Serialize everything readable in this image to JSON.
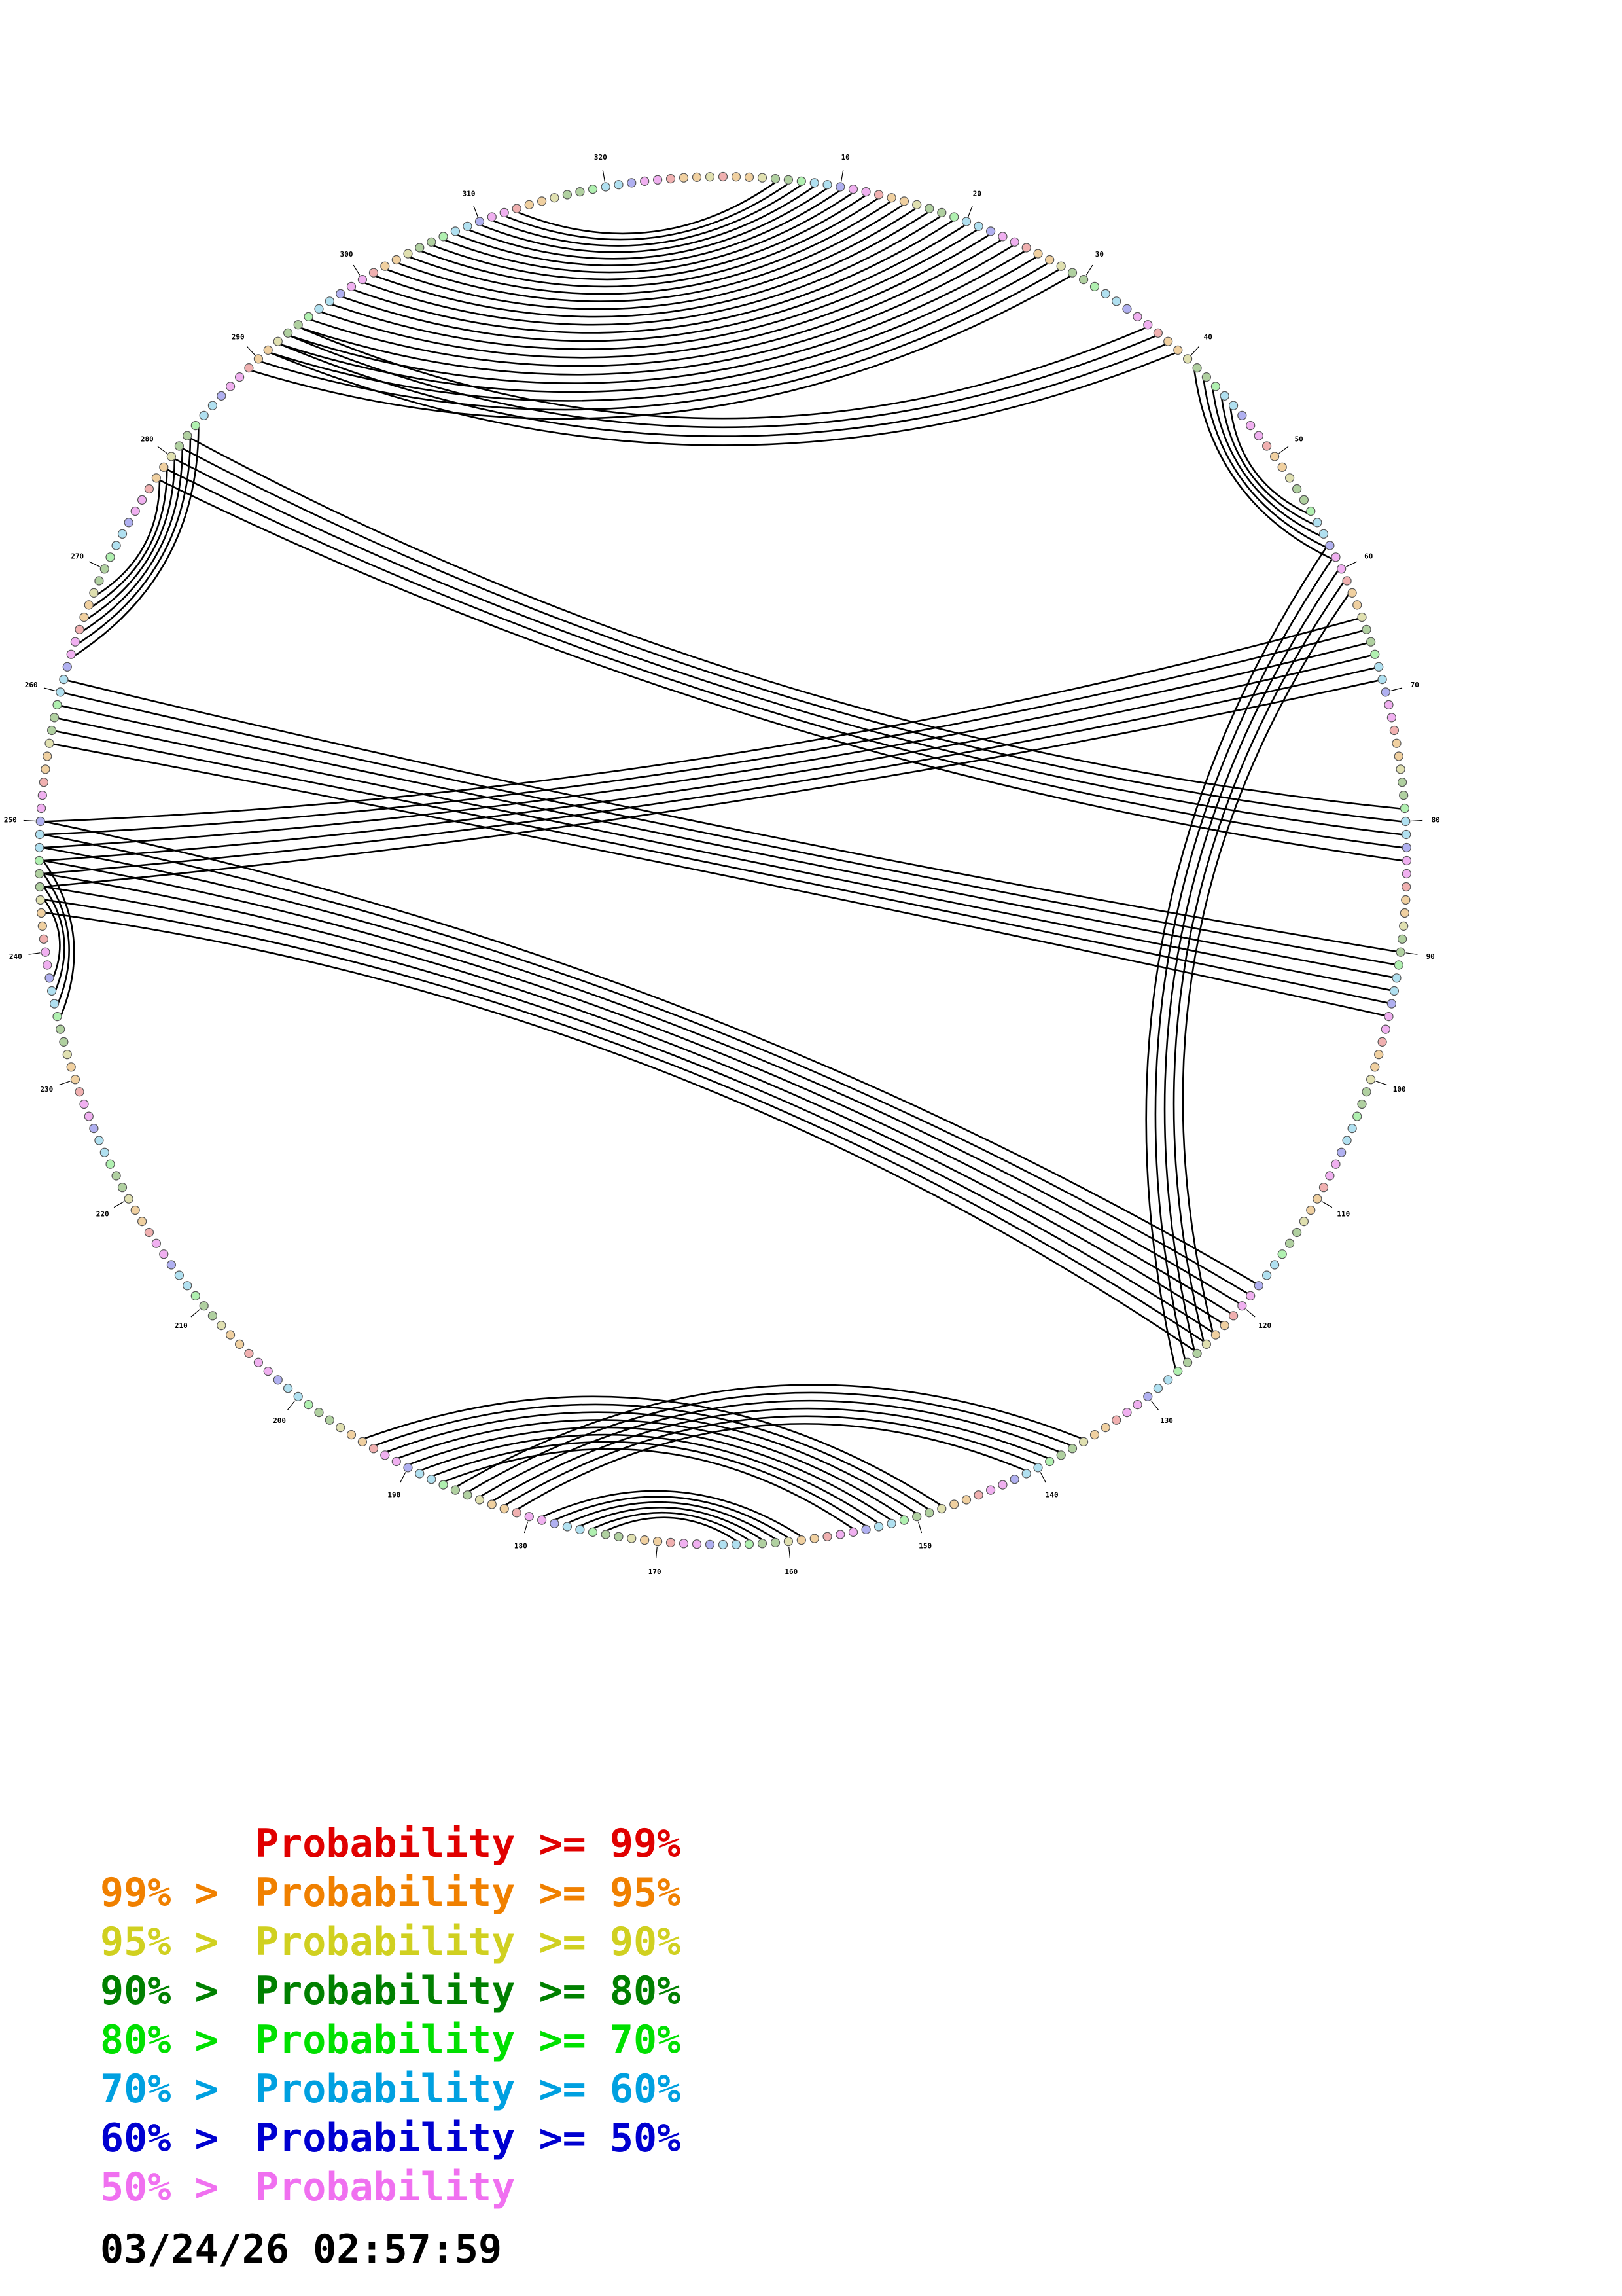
{
  "diagram": {
    "total_bases": 328,
    "tick_labels": [
      "10",
      "20",
      "30",
      "40",
      "50",
      "60",
      "70",
      "80",
      "90",
      "100",
      "110",
      "120",
      "130",
      "140",
      "150",
      "160",
      "170",
      "180",
      "190",
      "200",
      "210",
      "220",
      "230",
      "240",
      "250",
      "260",
      "270",
      "280",
      "290",
      "300",
      "310",
      "320"
    ],
    "pair_ranges": [
      {
        "i_start": 5,
        "j_start": 313,
        "count": 8
      },
      {
        "i_start": 13,
        "j_start": 305,
        "count": 17
      },
      {
        "i_start": 36,
        "j_start": 294,
        "count": 4
      },
      {
        "i_start": 41,
        "j_start": 59,
        "count": 5
      },
      {
        "i_start": 58,
        "j_start": 127,
        "count": 5
      },
      {
        "i_start": 64,
        "j_start": 250,
        "count": 6
      },
      {
        "i_start": 79,
        "j_start": 282,
        "count": 5
      },
      {
        "i_start": 90,
        "j_start": 261,
        "count": 6
      },
      {
        "i_start": 118,
        "j_start": 250,
        "count": 8
      },
      {
        "i_start": 136,
        "j_start": 186,
        "count": 6
      },
      {
        "i_start": 148,
        "j_start": 194,
        "count": 8
      },
      {
        "i_start": 159,
        "j_start": 179,
        "count": 6
      },
      {
        "i_start": 235,
        "j_start": 247,
        "count": 4
      },
      {
        "i_start": 263,
        "j_start": 283,
        "count": 6
      }
    ],
    "node_colors": [
      "#f0b0f0",
      "#b0b0f0",
      "#b0e0f0",
      "#b0f0b0",
      "#b0d0a0",
      "#e0e0b0",
      "#f0d0a0",
      "#f0b0b0"
    ],
    "line_color": "#000000"
  },
  "legend": [
    {
      "prefix": "",
      "label": "Probability >= 99%",
      "color": "#e00000"
    },
    {
      "prefix": "99% > ",
      "label": "Probability >= 95%",
      "color": "#f08000"
    },
    {
      "prefix": "95% > ",
      "label": "Probability >= 90%",
      "color": "#d0d020"
    },
    {
      "prefix": "90% > ",
      "label": "Probability >= 80%",
      "color": "#008000"
    },
    {
      "prefix": "80% > ",
      "label": "Probability >= 70%",
      "color": "#00e000"
    },
    {
      "prefix": "70% > ",
      "label": "Probability >= 60%",
      "color": "#00a0e0"
    },
    {
      "prefix": "60% > ",
      "label": "Probability >= 50%",
      "color": "#0000d0"
    },
    {
      "prefix": "50% > ",
      "label": "Probability",
      "color": "#f070f0"
    }
  ],
  "timestamp": "03/24/26 02:57:59"
}
